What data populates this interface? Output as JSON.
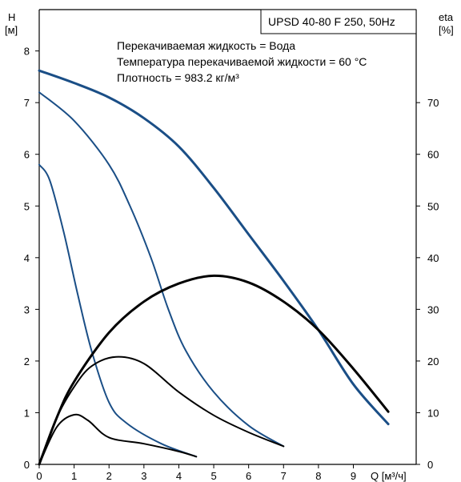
{
  "chart_data": {
    "type": "line",
    "title": "UPSD 40-80 F 250, 50Hz",
    "info_lines": [
      "Перекачиваемая жидкость = Вода",
      "Температура перекачиваемой жидкости = 60 °C",
      "Плотность = 983.2 кг/м³"
    ],
    "y_left_label": [
      "H",
      "[м]"
    ],
    "y_right_label": [
      "eta",
      "[%]"
    ],
    "x_label": "Q [м³/ч]",
    "xlim": [
      0,
      10.8
    ],
    "ylim_left": [
      0,
      8.8
    ],
    "ylim_right": [
      0,
      88
    ],
    "x_ticks": [
      0,
      1,
      2,
      3,
      4,
      5,
      6,
      7,
      8,
      9
    ],
    "y_left_ticks": [
      0,
      1,
      2,
      3,
      4,
      5,
      6,
      7,
      8
    ],
    "y_right_ticks": [
      0,
      10,
      20,
      30,
      40,
      50,
      60,
      70
    ],
    "grid": false,
    "series": [
      {
        "axis": "left",
        "kind": "head",
        "color": "#1a4e86",
        "width": 3,
        "points": [
          [
            0,
            7.62
          ],
          [
            1,
            7.38
          ],
          [
            2,
            7.1
          ],
          [
            3,
            6.7
          ],
          [
            4,
            6.15
          ],
          [
            5,
            5.35
          ],
          [
            6,
            4.45
          ],
          [
            7,
            3.55
          ],
          [
            8,
            2.6
          ],
          [
            9,
            1.55
          ],
          [
            10,
            0.78
          ]
        ]
      },
      {
        "axis": "left",
        "kind": "head",
        "color": "#1a4e86",
        "width": 2,
        "points": [
          [
            0,
            7.2
          ],
          [
            1,
            6.65
          ],
          [
            2,
            5.8
          ],
          [
            2.6,
            5.0
          ],
          [
            3.2,
            4.0
          ],
          [
            3.7,
            3.0
          ],
          [
            4.2,
            2.2
          ],
          [
            5,
            1.4
          ],
          [
            6,
            0.75
          ],
          [
            7,
            0.35
          ]
        ]
      },
      {
        "axis": "left",
        "kind": "head",
        "color": "#1a4e86",
        "width": 2,
        "points": [
          [
            0,
            5.8
          ],
          [
            0.3,
            5.5
          ],
          [
            0.7,
            4.5
          ],
          [
            1.1,
            3.3
          ],
          [
            1.5,
            2.2
          ],
          [
            2,
            1.2
          ],
          [
            2.5,
            0.8
          ],
          [
            3.5,
            0.4
          ],
          [
            4.5,
            0.15
          ]
        ]
      },
      {
        "axis": "right",
        "kind": "efficiency",
        "color": "#000000",
        "width": 3,
        "points": [
          [
            0,
            0
          ],
          [
            0.5,
            9
          ],
          [
            1,
            16
          ],
          [
            2,
            25.5
          ],
          [
            3,
            31.5
          ],
          [
            4,
            35
          ],
          [
            5,
            36.5
          ],
          [
            6,
            35.2
          ],
          [
            7,
            31.5
          ],
          [
            8,
            26
          ],
          [
            9,
            18.5
          ],
          [
            10,
            10.2
          ]
        ]
      },
      {
        "axis": "right",
        "kind": "efficiency",
        "color": "#000000",
        "width": 2,
        "points": [
          [
            0,
            0
          ],
          [
            0.5,
            9
          ],
          [
            1,
            15
          ],
          [
            1.5,
            19
          ],
          [
            2.2,
            20.8
          ],
          [
            3,
            19.5
          ],
          [
            4,
            14
          ],
          [
            5,
            9.5
          ],
          [
            6,
            6.2
          ],
          [
            7,
            3.5
          ]
        ]
      },
      {
        "axis": "right",
        "kind": "efficiency",
        "color": "#000000",
        "width": 2,
        "points": [
          [
            0,
            0
          ],
          [
            0.5,
            7.2
          ],
          [
            1,
            9.6
          ],
          [
            1.4,
            8.5
          ],
          [
            2,
            5.2
          ],
          [
            3,
            4.0
          ],
          [
            4,
            2.5
          ],
          [
            4.5,
            1.5
          ]
        ]
      }
    ]
  }
}
